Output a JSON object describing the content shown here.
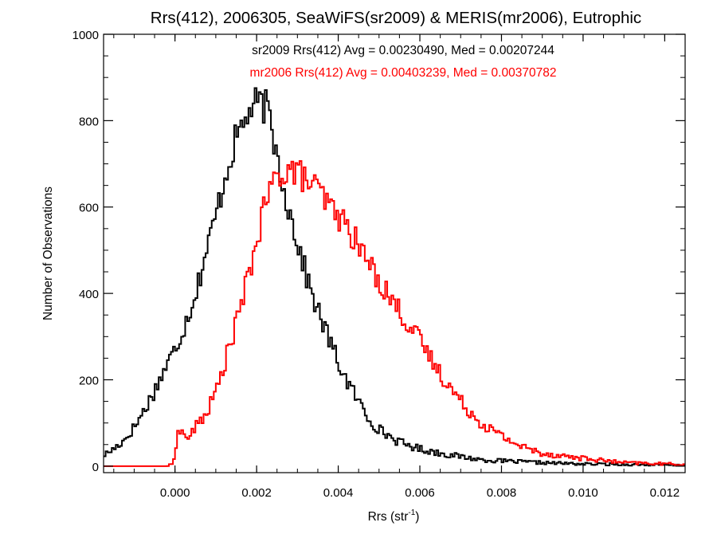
{
  "chart_data": {
    "type": "histogram-step",
    "title": "Rrs(412), 2006305, SeaWiFS(sr2009) & MERIS(mr2006), Eutrophic",
    "xlabel": "Rrs (str",
    "xlabel_sup": "-1",
    "xlabel_close": ")",
    "ylabel": "Number of Observations",
    "xlim": [
      -0.00175,
      0.0125
    ],
    "ylim": [
      -15,
      1000
    ],
    "xticks": [
      0.0,
      0.002,
      0.004,
      0.006,
      0.008,
      0.01,
      0.012
    ],
    "xtick_labels": [
      "0.000",
      "0.002",
      "0.004",
      "0.006",
      "0.008",
      "0.010",
      "0.012"
    ],
    "yticks": [
      0,
      200,
      400,
      600,
      800,
      1000
    ],
    "ytick_labels": [
      "0",
      "200",
      "400",
      "600",
      "800",
      "1000"
    ],
    "bin_width": 5e-05,
    "annotations": [
      {
        "text": "sr2009 Rrs(412) Avg = 0.00230490, Med = 0.00207244",
        "color": "#000000"
      },
      {
        "text": "mr2006 Rrs(412) Avg = 0.00403239, Med = 0.00370782",
        "color": "#ff0000"
      }
    ],
    "series": [
      {
        "id": "sr2009",
        "color": "#000000",
        "mode": "bins",
        "x": [
          -0.00175,
          -0.0015,
          -0.00125,
          -0.001,
          -0.00075,
          -0.0005,
          -0.00025,
          0.0,
          0.00025,
          0.0005,
          0.00075,
          0.001,
          0.00125,
          0.0015,
          0.00175,
          0.002,
          0.00225,
          0.0025,
          0.00275,
          0.003,
          0.00325,
          0.0035,
          0.00375,
          0.004,
          0.00425,
          0.0045,
          0.00475,
          0.005,
          0.0055,
          0.006,
          0.0065,
          0.007,
          0.0075,
          0.008,
          0.009,
          0.01,
          0.011,
          0.0125
        ],
        "y": [
          25,
          40,
          60,
          90,
          130,
          175,
          225,
          270,
          330,
          400,
          490,
          580,
          680,
          760,
          810,
          840,
          830,
          720,
          610,
          520,
          430,
          360,
          300,
          240,
          190,
          150,
          110,
          85,
          55,
          40,
          30,
          22,
          15,
          12,
          8,
          5,
          4,
          2
        ]
      },
      {
        "id": "mr2006",
        "color": "#ff0000",
        "mode": "bins",
        "x": [
          -0.00175,
          -0.0002,
          -5e-05,
          0.0,
          0.0001,
          0.0002,
          0.00035,
          0.0005,
          0.00075,
          0.001,
          0.00125,
          0.0015,
          0.00175,
          0.002,
          0.00225,
          0.0025,
          0.00275,
          0.003,
          0.00325,
          0.0035,
          0.00375,
          0.004,
          0.00425,
          0.0045,
          0.00475,
          0.005,
          0.0055,
          0.006,
          0.0065,
          0.007,
          0.0075,
          0.008,
          0.0085,
          0.009,
          0.01,
          0.011,
          0.0125
        ],
        "y": [
          0,
          0,
          5,
          40,
          85,
          75,
          65,
          90,
          120,
          170,
          250,
          330,
          420,
          520,
          620,
          670,
          690,
          680,
          660,
          640,
          605,
          580,
          550,
          510,
          470,
          430,
          360,
          290,
          215,
          150,
          100,
          70,
          45,
          30,
          18,
          8,
          4
        ]
      }
    ]
  }
}
